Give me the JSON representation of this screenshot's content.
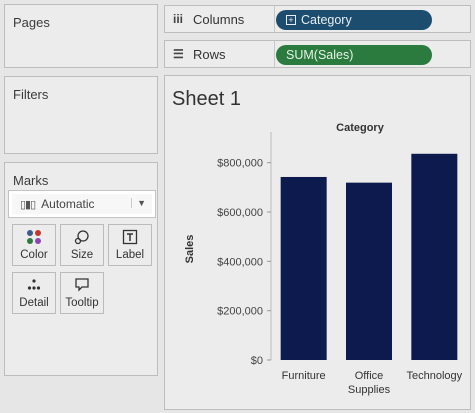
{
  "pages": {
    "title": "Pages"
  },
  "filters": {
    "title": "Filters"
  },
  "marks": {
    "title": "Marks",
    "mark_type": "Automatic",
    "buttons": [
      {
        "label": "Color",
        "icon": "color-dots-icon"
      },
      {
        "label": "Size",
        "icon": "size-icon"
      },
      {
        "label": "Label",
        "icon": "label-icon"
      },
      {
        "label": "Detail",
        "icon": "detail-icon"
      },
      {
        "label": "Tooltip",
        "icon": "tooltip-icon"
      }
    ]
  },
  "shelves": {
    "columns": {
      "label": "Columns",
      "pill": "Category",
      "pill_color": "#1c4d6f"
    },
    "rows": {
      "label": "Rows",
      "pill": "SUM(Sales)",
      "pill_color": "#2b7a3e"
    }
  },
  "sheet": {
    "title": "Sheet 1"
  },
  "chart_data": {
    "type": "bar",
    "title": "Category",
    "xlabel": "",
    "ylabel": "Sales",
    "categories": [
      "Furniture",
      "Office\nSupplies",
      "Technology"
    ],
    "values": [
      742000,
      719000,
      836000
    ],
    "ylim": [
      0,
      900000
    ],
    "yticks": [
      0,
      200000,
      400000,
      600000,
      800000
    ],
    "ytick_labels": [
      "$0",
      "$200,000",
      "$400,000",
      "$600,000",
      "$800,000"
    ],
    "bar_color": "#0c1a4d",
    "grid": false
  }
}
